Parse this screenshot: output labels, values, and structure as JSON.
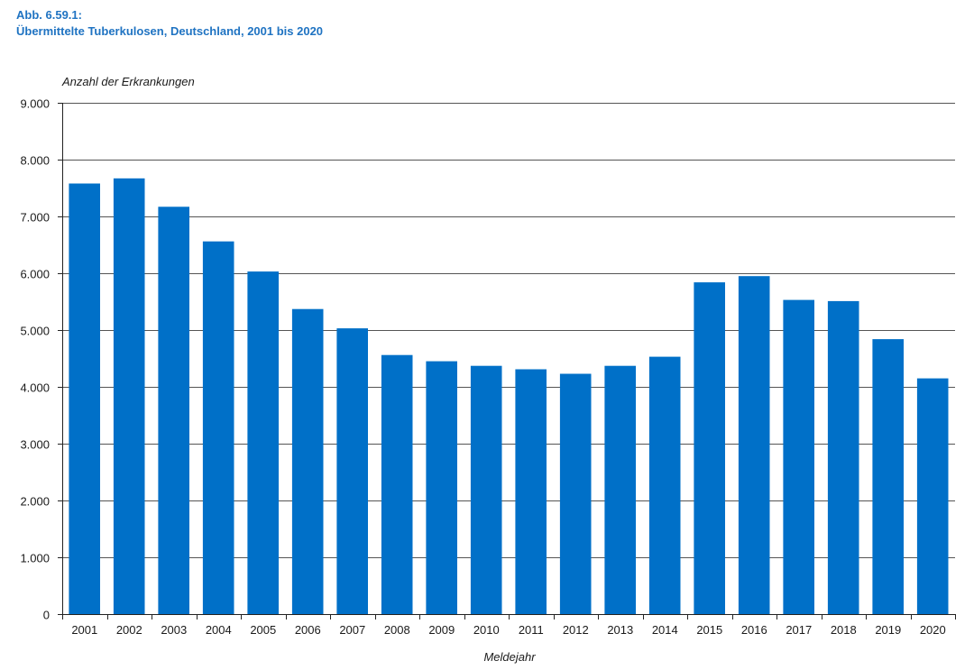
{
  "figure": {
    "label": "Abb. 6.59.1:",
    "title": "Übermittelte Tuberkulosen, Deutschland, 2001 bis 2020"
  },
  "colors": {
    "bar": "#0070c8",
    "title": "#1f73c2",
    "grid": "#555555",
    "axis": "#222222"
  },
  "chart_data": {
    "type": "bar",
    "ylabel": "Anzahl der Erkrankungen",
    "xlabel": "Meldejahr",
    "ylim": [
      0,
      9000
    ],
    "yticks": [
      0,
      1000,
      2000,
      3000,
      4000,
      5000,
      6000,
      7000,
      8000,
      9000
    ],
    "ytick_labels": [
      "0",
      "1.000",
      "2.000",
      "3.000",
      "4.000",
      "5.000",
      "6.000",
      "7.000",
      "8.000",
      "9.000"
    ],
    "grid": true,
    "categories": [
      "2001",
      "2002",
      "2003",
      "2004",
      "2005",
      "2006",
      "2007",
      "2008",
      "2009",
      "2010",
      "2011",
      "2012",
      "2013",
      "2014",
      "2015",
      "2016",
      "2017",
      "2018",
      "2019",
      "2020"
    ],
    "values": [
      7580,
      7670,
      7170,
      6560,
      6030,
      5370,
      5030,
      4560,
      4450,
      4370,
      4310,
      4230,
      4370,
      4530,
      5840,
      5950,
      5530,
      5510,
      4840,
      4150
    ]
  }
}
